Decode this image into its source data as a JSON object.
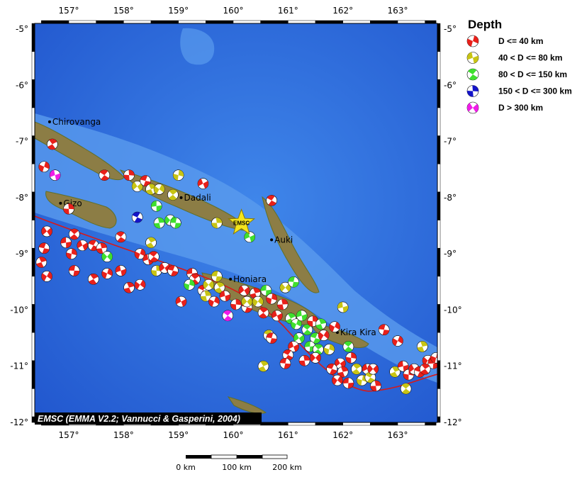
{
  "map": {
    "lon_range": [
      156.5,
      163.7
    ],
    "lat_range": [
      -12,
      -4.9
    ],
    "lon_ticks": [
      {
        "value": 157,
        "label": "157°"
      },
      {
        "value": 158,
        "label": "158°"
      },
      {
        "value": 159,
        "label": "159°"
      },
      {
        "value": 160,
        "label": "160°"
      },
      {
        "value": 161,
        "label": "161°"
      },
      {
        "value": 162,
        "label": "162°"
      },
      {
        "value": 163,
        "label": "163°"
      }
    ],
    "lat_ticks": [
      {
        "value": -5,
        "label": "-5°"
      },
      {
        "value": -6,
        "label": "-6°"
      },
      {
        "value": -7,
        "label": "-7°"
      },
      {
        "value": -8,
        "label": "-8°"
      },
      {
        "value": -9,
        "label": "-9°"
      },
      {
        "value": -10,
        "label": "-10°"
      },
      {
        "value": -11,
        "label": "-11°"
      },
      {
        "value": -12,
        "label": "-12°"
      }
    ],
    "colors": {
      "ocean_deep": "#1f4fc7",
      "ocean": "#2f6fdc",
      "ocean_shallow": "#5c9ef0",
      "land": "#8c7d45",
      "land_dark": "#5f6f2a",
      "trench": "#d81818"
    },
    "places": [
      {
        "name": "Chirovanga",
        "lon": 156.65,
        "lat": -6.65
      },
      {
        "name": "Gizo",
        "lon": 156.85,
        "lat": -8.1
      },
      {
        "name": "Dadali",
        "lon": 159.05,
        "lat": -8.0
      },
      {
        "name": "Auki",
        "lon": 160.7,
        "lat": -8.75
      },
      {
        "name": "Honiara",
        "lon": 159.95,
        "lat": -9.45
      },
      {
        "name": "Kira Kira",
        "lon": 161.9,
        "lat": -10.4
      }
    ],
    "epicenter": {
      "label": "EMSC",
      "lon": 160.15,
      "lat": -8.45,
      "color": "#f5e51c"
    },
    "mechanisms": [
      {
        "lon": 156.7,
        "lat": -7.05,
        "depth": 0
      },
      {
        "lon": 156.55,
        "lat": -7.45,
        "depth": 0
      },
      {
        "lon": 156.75,
        "lat": -7.6,
        "depth": 4
      },
      {
        "lon": 157.65,
        "lat": -7.6,
        "depth": 0
      },
      {
        "lon": 157.0,
        "lat": -8.2,
        "depth": 0
      },
      {
        "lon": 156.6,
        "lat": -8.6,
        "depth": 0
      },
      {
        "lon": 156.55,
        "lat": -8.9,
        "depth": 0
      },
      {
        "lon": 156.5,
        "lat": -9.15,
        "depth": 0
      },
      {
        "lon": 156.6,
        "lat": -9.4,
        "depth": 0
      },
      {
        "lon": 156.95,
        "lat": -8.8,
        "depth": 0
      },
      {
        "lon": 157.1,
        "lat": -8.65,
        "depth": 0
      },
      {
        "lon": 157.05,
        "lat": -9.0,
        "depth": 0
      },
      {
        "lon": 157.25,
        "lat": -8.85,
        "depth": 0
      },
      {
        "lon": 157.45,
        "lat": -8.85,
        "depth": 0
      },
      {
        "lon": 157.6,
        "lat": -8.9,
        "depth": 0
      },
      {
        "lon": 157.7,
        "lat": -9.05,
        "depth": 2
      },
      {
        "lon": 157.1,
        "lat": -9.3,
        "depth": 0
      },
      {
        "lon": 157.45,
        "lat": -9.45,
        "depth": 0
      },
      {
        "lon": 157.7,
        "lat": -9.35,
        "depth": 0
      },
      {
        "lon": 157.95,
        "lat": -9.3,
        "depth": 0
      },
      {
        "lon": 157.95,
        "lat": -8.7,
        "depth": 0
      },
      {
        "lon": 158.1,
        "lat": -7.6,
        "depth": 0
      },
      {
        "lon": 158.25,
        "lat": -7.8,
        "depth": 1
      },
      {
        "lon": 158.4,
        "lat": -7.7,
        "depth": 0
      },
      {
        "lon": 158.5,
        "lat": -7.85,
        "depth": 1
      },
      {
        "lon": 158.65,
        "lat": -7.85,
        "depth": 1
      },
      {
        "lon": 158.6,
        "lat": -8.15,
        "depth": 2
      },
      {
        "lon": 158.9,
        "lat": -7.95,
        "depth": 1
      },
      {
        "lon": 159.0,
        "lat": -7.6,
        "depth": 1
      },
      {
        "lon": 159.45,
        "lat": -7.75,
        "depth": 0
      },
      {
        "lon": 158.25,
        "lat": -8.35,
        "depth": 3
      },
      {
        "lon": 158.65,
        "lat": -8.45,
        "depth": 2
      },
      {
        "lon": 158.85,
        "lat": -8.4,
        "depth": 2
      },
      {
        "lon": 158.95,
        "lat": -8.45,
        "depth": 2
      },
      {
        "lon": 158.5,
        "lat": -8.8,
        "depth": 1
      },
      {
        "lon": 158.3,
        "lat": -9.0,
        "depth": 0
      },
      {
        "lon": 158.45,
        "lat": -9.1,
        "depth": 0
      },
      {
        "lon": 158.55,
        "lat": -9.05,
        "depth": 0
      },
      {
        "lon": 158.6,
        "lat": -9.3,
        "depth": 1
      },
      {
        "lon": 158.75,
        "lat": -9.25,
        "depth": 0
      },
      {
        "lon": 158.9,
        "lat": -9.3,
        "depth": 0
      },
      {
        "lon": 158.1,
        "lat": -9.6,
        "depth": 0
      },
      {
        "lon": 158.3,
        "lat": -9.55,
        "depth": 0
      },
      {
        "lon": 159.25,
        "lat": -9.35,
        "depth": 0
      },
      {
        "lon": 159.3,
        "lat": -9.45,
        "depth": 0
      },
      {
        "lon": 159.2,
        "lat": -9.55,
        "depth": 2
      },
      {
        "lon": 159.05,
        "lat": -9.85,
        "depth": 0
      },
      {
        "lon": 159.45,
        "lat": -9.65,
        "depth": 0
      },
      {
        "lon": 159.5,
        "lat": -9.75,
        "depth": 1
      },
      {
        "lon": 159.55,
        "lat": -9.55,
        "depth": 1
      },
      {
        "lon": 159.7,
        "lat": -9.4,
        "depth": 1
      },
      {
        "lon": 159.75,
        "lat": -9.6,
        "depth": 1
      },
      {
        "lon": 159.65,
        "lat": -9.85,
        "depth": 0
      },
      {
        "lon": 159.85,
        "lat": -9.75,
        "depth": 0
      },
      {
        "lon": 159.9,
        "lat": -10.1,
        "depth": 4
      },
      {
        "lon": 160.05,
        "lat": -9.9,
        "depth": 0
      },
      {
        "lon": 160.2,
        "lat": -9.65,
        "depth": 0
      },
      {
        "lon": 160.25,
        "lat": -9.95,
        "depth": 0
      },
      {
        "lon": 160.4,
        "lat": -9.7,
        "depth": 0
      },
      {
        "lon": 160.45,
        "lat": -9.85,
        "depth": 1
      },
      {
        "lon": 160.6,
        "lat": -9.65,
        "depth": 2
      },
      {
        "lon": 160.55,
        "lat": -10.05,
        "depth": 0
      },
      {
        "lon": 160.7,
        "lat": -9.8,
        "depth": 0
      },
      {
        "lon": 160.8,
        "lat": -10.1,
        "depth": 0
      },
      {
        "lon": 160.65,
        "lat": -10.45,
        "depth": 1
      },
      {
        "lon": 160.9,
        "lat": -9.9,
        "depth": 0
      },
      {
        "lon": 160.95,
        "lat": -9.6,
        "depth": 1
      },
      {
        "lon": 161.1,
        "lat": -9.5,
        "depth": 2
      },
      {
        "lon": 161.05,
        "lat": -10.15,
        "depth": 2
      },
      {
        "lon": 161.15,
        "lat": -10.25,
        "depth": 2
      },
      {
        "lon": 161.25,
        "lat": -10.1,
        "depth": 2
      },
      {
        "lon": 161.35,
        "lat": -10.35,
        "depth": 2
      },
      {
        "lon": 161.45,
        "lat": -10.2,
        "depth": 0
      },
      {
        "lon": 161.2,
        "lat": -10.5,
        "depth": 2
      },
      {
        "lon": 161.5,
        "lat": -10.5,
        "depth": 2
      },
      {
        "lon": 161.6,
        "lat": -10.25,
        "depth": 2
      },
      {
        "lon": 161.65,
        "lat": -10.45,
        "depth": 0
      },
      {
        "lon": 161.4,
        "lat": -10.65,
        "depth": 2
      },
      {
        "lon": 161.55,
        "lat": -10.7,
        "depth": 2
      },
      {
        "lon": 161.75,
        "lat": -10.7,
        "depth": 1
      },
      {
        "lon": 161.1,
        "lat": -10.65,
        "depth": 0
      },
      {
        "lon": 161.0,
        "lat": -10.8,
        "depth": 0
      },
      {
        "lon": 161.3,
        "lat": -10.9,
        "depth": 0
      },
      {
        "lon": 161.5,
        "lat": -10.85,
        "depth": 0
      },
      {
        "lon": 160.95,
        "lat": -10.95,
        "depth": 0
      },
      {
        "lon": 160.55,
        "lat": -11.0,
        "depth": 1
      },
      {
        "lon": 161.85,
        "lat": -10.3,
        "depth": 0
      },
      {
        "lon": 162.0,
        "lat": -9.95,
        "depth": 1
      },
      {
        "lon": 162.1,
        "lat": -10.65,
        "depth": 2
      },
      {
        "lon": 162.15,
        "lat": -10.85,
        "depth": 0
      },
      {
        "lon": 161.95,
        "lat": -10.95,
        "depth": 0
      },
      {
        "lon": 161.8,
        "lat": -11.05,
        "depth": 0
      },
      {
        "lon": 162.0,
        "lat": -11.1,
        "depth": 0
      },
      {
        "lon": 161.9,
        "lat": -11.25,
        "depth": 0
      },
      {
        "lon": 162.1,
        "lat": -11.3,
        "depth": 0
      },
      {
        "lon": 162.25,
        "lat": -11.05,
        "depth": 1
      },
      {
        "lon": 162.35,
        "lat": -11.25,
        "depth": 1
      },
      {
        "lon": 162.45,
        "lat": -11.05,
        "depth": 0
      },
      {
        "lon": 162.5,
        "lat": -11.2,
        "depth": 1
      },
      {
        "lon": 162.6,
        "lat": -11.35,
        "depth": 0
      },
      {
        "lon": 162.55,
        "lat": -11.05,
        "depth": 0
      },
      {
        "lon": 162.75,
        "lat": -10.35,
        "depth": 0
      },
      {
        "lon": 162.95,
        "lat": -11.1,
        "depth": 1
      },
      {
        "lon": 163.0,
        "lat": -10.55,
        "depth": 0
      },
      {
        "lon": 163.1,
        "lat": -11.0,
        "depth": 0
      },
      {
        "lon": 163.15,
        "lat": -11.4,
        "depth": 1
      },
      {
        "lon": 163.2,
        "lat": -11.15,
        "depth": 0
      },
      {
        "lon": 163.3,
        "lat": -11.05,
        "depth": 0
      },
      {
        "lon": 163.4,
        "lat": -11.1,
        "depth": 0
      },
      {
        "lon": 163.45,
        "lat": -10.65,
        "depth": 1
      },
      {
        "lon": 163.55,
        "lat": -10.9,
        "depth": 0
      },
      {
        "lon": 163.65,
        "lat": -10.95,
        "depth": 0
      },
      {
        "lon": 163.5,
        "lat": -11.05,
        "depth": 0
      },
      {
        "lon": 163.7,
        "lat": -10.85,
        "depth": 0
      },
      {
        "lon": 160.3,
        "lat": -8.7,
        "depth": 2
      },
      {
        "lon": 160.7,
        "lat": -8.05,
        "depth": 0
      },
      {
        "lon": 159.7,
        "lat": -8.45,
        "depth": 1
      },
      {
        "lon": 160.25,
        "lat": -9.85,
        "depth": 1
      },
      {
        "lon": 160.7,
        "lat": -10.5,
        "depth": 0
      }
    ],
    "credit": "EMSC (EMMA V2.2; Vannucci & Gasperini, 2004)"
  },
  "legend": {
    "title": "Depth",
    "items": [
      {
        "label": "D <= 40 km",
        "color": "#e8201a"
      },
      {
        "label": "40 < D <= 80 km",
        "color": "#c8c414"
      },
      {
        "label": "80 < D <= 150 km",
        "color": "#3fdf2e"
      },
      {
        "label": "150 < D <= 300 km",
        "color": "#1414c8"
      },
      {
        "label": "D > 300 km",
        "color": "#f01ce8"
      }
    ]
  },
  "scale_bar": {
    "labels": [
      "0 km",
      "100 km",
      "200 km"
    ]
  }
}
